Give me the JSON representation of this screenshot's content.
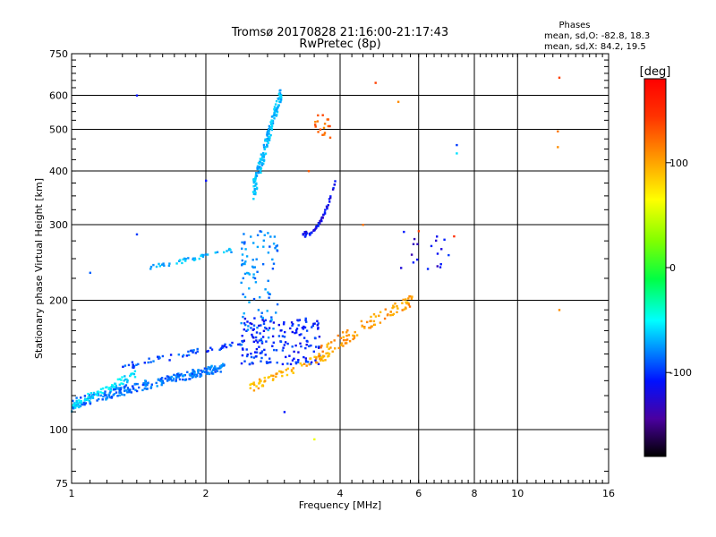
{
  "chart_data": {
    "type": "scatter",
    "title": "Tromsø 20170828 21:16:00-21:17:43",
    "subtitle": "RwPretec (8p)",
    "xlabel": "Frequency [MHz]",
    "ylabel": "Stationary phase Virtual Height [km]",
    "xscale": "log",
    "yscale": "log",
    "xlim": [
      1,
      16
    ],
    "ylim": [
      75,
      750
    ],
    "xticks": [
      1,
      2,
      4,
      6,
      8,
      10,
      16
    ],
    "yticks": [
      75,
      100,
      200,
      300,
      400,
      500,
      600,
      750
    ],
    "grid": true,
    "stats": {
      "header": "Phases",
      "line_o": "mean, sd,O: -82.8, 18.3",
      "line_x": "mean, sd,X:  84.2, 19.5"
    },
    "colorbar": {
      "label": "[deg]",
      "range": [
        -180,
        180
      ],
      "ticks": [
        100,
        0,
        -100
      ]
    },
    "clusters": [
      {
        "name": "low-F-trace",
        "x": [
          1.0,
          2.2
        ],
        "y": [
          115,
          140
        ],
        "c": -95,
        "n": 260,
        "curve": "rising"
      },
      {
        "name": "low-F-trace-cyan",
        "x": [
          1.0,
          1.4
        ],
        "y": [
          113,
          135
        ],
        "c": -60,
        "n": 70,
        "curve": "rising"
      },
      {
        "name": "upper-edge",
        "x": [
          1.3,
          2.5
        ],
        "y": [
          140,
          160
        ],
        "c": -105,
        "n": 60,
        "curve": "rising"
      },
      {
        "name": "E-layer",
        "x": [
          2.4,
          3.6
        ],
        "y": [
          142,
          182
        ],
        "c": -115,
        "n": 170,
        "curve": "none"
      },
      {
        "name": "E-cusp",
        "x": [
          2.4,
          2.9
        ],
        "y": [
          160,
          290
        ],
        "c": -90,
        "n": 90,
        "curve": "vertical"
      },
      {
        "name": "Es-bar",
        "x": [
          1.5,
          2.3
        ],
        "y": [
          238,
          262
        ],
        "c": -75,
        "n": 40,
        "curve": "rising"
      },
      {
        "name": "F2-blob",
        "x": [
          2.55,
          2.95
        ],
        "y": [
          360,
          610
        ],
        "c": -75,
        "n": 150,
        "curve": "steep"
      },
      {
        "name": "F2-O-hook",
        "x": [
          3.3,
          3.9
        ],
        "y": [
          285,
          380
        ],
        "c": -125,
        "n": 55,
        "curve": "hook"
      },
      {
        "name": "X-trace",
        "x": [
          2.5,
          3.8
        ],
        "y": [
          125,
          150
        ],
        "c": 95,
        "n": 70,
        "curve": "rising"
      },
      {
        "name": "X-trace-upper",
        "x": [
          3.5,
          5.8
        ],
        "y": [
          148,
          200
        ],
        "c": 105,
        "n": 95,
        "curve": "rising"
      },
      {
        "name": "X-F-blob",
        "x": [
          3.5,
          3.8
        ],
        "y": [
          475,
          540
        ],
        "c": 125,
        "n": 18,
        "curve": "none"
      },
      {
        "name": "high-F-O",
        "x": [
          5.4,
          6.9
        ],
        "y": [
          235,
          300
        ],
        "c": -130,
        "n": 18,
        "curve": "none"
      }
    ],
    "outliers": [
      {
        "x": 1.4,
        "y": 600,
        "c": -120
      },
      {
        "x": 1.4,
        "y": 285,
        "c": -110
      },
      {
        "x": 1.1,
        "y": 232,
        "c": -100
      },
      {
        "x": 4.8,
        "y": 642,
        "c": 140
      },
      {
        "x": 5.4,
        "y": 580,
        "c": 110
      },
      {
        "x": 7.3,
        "y": 460,
        "c": -110
      },
      {
        "x": 7.3,
        "y": 440,
        "c": -60
      },
      {
        "x": 12.4,
        "y": 660,
        "c": 140
      },
      {
        "x": 12.3,
        "y": 455,
        "c": 110
      },
      {
        "x": 12.3,
        "y": 495,
        "c": 120
      },
      {
        "x": 12.4,
        "y": 190,
        "c": 110
      },
      {
        "x": 3.5,
        "y": 95,
        "c": 60
      },
      {
        "x": 3.0,
        "y": 110,
        "c": -120
      },
      {
        "x": 4.5,
        "y": 300,
        "c": 120
      },
      {
        "x": 7.0,
        "y": 255,
        "c": -110
      },
      {
        "x": 7.2,
        "y": 282,
        "c": 150
      },
      {
        "x": 6.0,
        "y": 290,
        "c": 140
      },
      {
        "x": 2.0,
        "y": 380,
        "c": -120
      },
      {
        "x": 3.4,
        "y": 400,
        "c": 130
      }
    ]
  }
}
